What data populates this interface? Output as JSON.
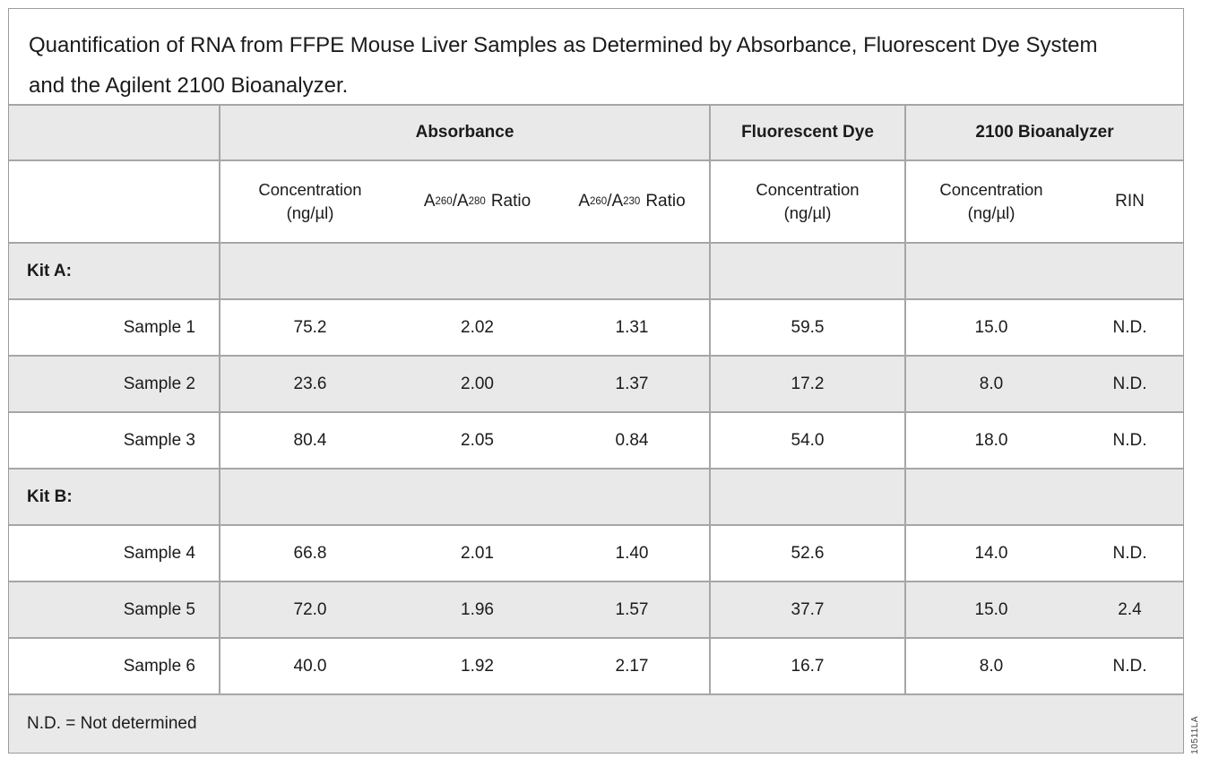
{
  "title": "Quantification of RNA from FFPE Mouse Liver Samples as Determined by Absorbance, Fluorescent Dye System and the Agilent 2100 Bioanalyzer.",
  "figure_code": "10511LA",
  "footnote": "N.D. = Not determined",
  "colors": {
    "band_gray": "#e9e9e9",
    "grid_line": "#a6a6a6",
    "text": "#1b1b1b",
    "background": "#ffffff"
  },
  "header": {
    "groups": {
      "absorbance": "Absorbance",
      "fluorescent": "Fluorescent Dye",
      "bioanalyzer": "2100 Bioanalyzer"
    },
    "sub": {
      "concentration_line1": "Concentration",
      "concentration_line2": "(ng/µl)",
      "ratio280": {
        "base1": "A",
        "sub1": "260",
        "base2": "/A",
        "sub2": "280",
        "word": "Ratio"
      },
      "ratio230": {
        "base1": "A",
        "sub1": "260",
        "base2": "/A",
        "sub2": "230",
        "word": "Ratio"
      },
      "rin": "RIN"
    }
  },
  "rows": [
    {
      "label": "Kit A:"
    },
    {
      "label": "Sample 1",
      "abs_conc": "75.2",
      "ratio280": "2.02",
      "ratio230": "1.31",
      "fluor_conc": "59.5",
      "bio_conc": "15.0",
      "rin": "N.D."
    },
    {
      "label": "Sample 2",
      "abs_conc": "23.6",
      "ratio280": "2.00",
      "ratio230": "1.37",
      "fluor_conc": "17.2",
      "bio_conc": "8.0",
      "rin": "N.D."
    },
    {
      "label": "Sample 3",
      "abs_conc": "80.4",
      "ratio280": "2.05",
      "ratio230": "0.84",
      "fluor_conc": "54.0",
      "bio_conc": "18.0",
      "rin": "N.D."
    },
    {
      "label": "Kit B:"
    },
    {
      "label": "Sample 4",
      "abs_conc": "66.8",
      "ratio280": "2.01",
      "ratio230": "1.40",
      "fluor_conc": "52.6",
      "bio_conc": "14.0",
      "rin": "N.D."
    },
    {
      "label": "Sample 5",
      "abs_conc": "72.0",
      "ratio280": "1.96",
      "ratio230": "1.57",
      "fluor_conc": "37.7",
      "bio_conc": "15.0",
      "rin": "2.4"
    },
    {
      "label": "Sample 6",
      "abs_conc": "40.0",
      "ratio280": "1.92",
      "ratio230": "2.17",
      "fluor_conc": "16.7",
      "bio_conc": "8.0",
      "rin": "N.D."
    }
  ]
}
